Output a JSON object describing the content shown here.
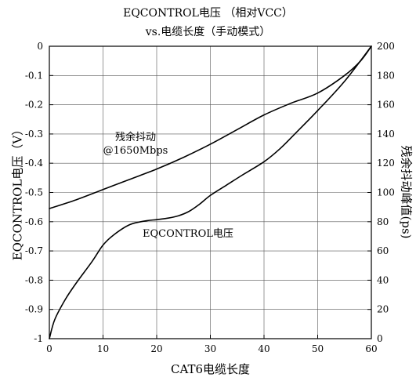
{
  "title_line1": "EQCONTROL电压 （相对VCC）",
  "title_line2": "vs.电缆长度（手动模式）",
  "chart_data": {
    "type": "line",
    "xlabel": "CAT6电缆长度",
    "ylabel_left": "EQCONTROL电压（V）",
    "ylabel_right": "残余抖动峰值(ps)",
    "xlim": [
      0,
      60
    ],
    "ylim_left": [
      -1,
      0
    ],
    "ylim_right": [
      0,
      200
    ],
    "grid": true,
    "x_ticks": [
      "0",
      "10",
      "20",
      "30",
      "40",
      "50",
      "60"
    ],
    "y_left_ticks": [
      "0",
      "-0.1",
      "-0.2",
      "-0.3",
      "-0.4",
      "-0.5",
      "-0.6",
      "-0.7",
      "-0.8",
      "-0.9",
      "-1"
    ],
    "y_right_ticks": [
      "200",
      "180",
      "160",
      "140",
      "120",
      "100",
      "80",
      "60",
      "40",
      "20",
      "0"
    ],
    "series": [
      {
        "name": "残余抖动@1650Mbps",
        "axis": "right",
        "x": [
          0,
          5,
          10,
          15,
          20,
          25,
          30,
          35,
          40,
          45,
          50,
          55,
          58,
          60
        ],
        "y": [
          89,
          95,
          102,
          109,
          116,
          124,
          133,
          143,
          153,
          161,
          168,
          180,
          190,
          200
        ]
      },
      {
        "name": "EQCONTROL电压",
        "axis": "left",
        "x": [
          0,
          1,
          3,
          5,
          8,
          10,
          12,
          15,
          18,
          20,
          22,
          24,
          26,
          28,
          30,
          33,
          36,
          40,
          43,
          46,
          50,
          55,
          60
        ],
        "y": [
          -1.0,
          -0.935,
          -0.865,
          -0.81,
          -0.735,
          -0.68,
          -0.645,
          -0.61,
          -0.597,
          -0.593,
          -0.588,
          -0.58,
          -0.565,
          -0.54,
          -0.51,
          -0.475,
          -0.44,
          -0.395,
          -0.35,
          -0.295,
          -0.22,
          -0.12,
          0
        ]
      }
    ],
    "annotations": {
      "jitter_line1": "残余抖动",
      "jitter_line2": "@1650Mbps",
      "voltage_label": "EQCONTROL电压"
    }
  }
}
